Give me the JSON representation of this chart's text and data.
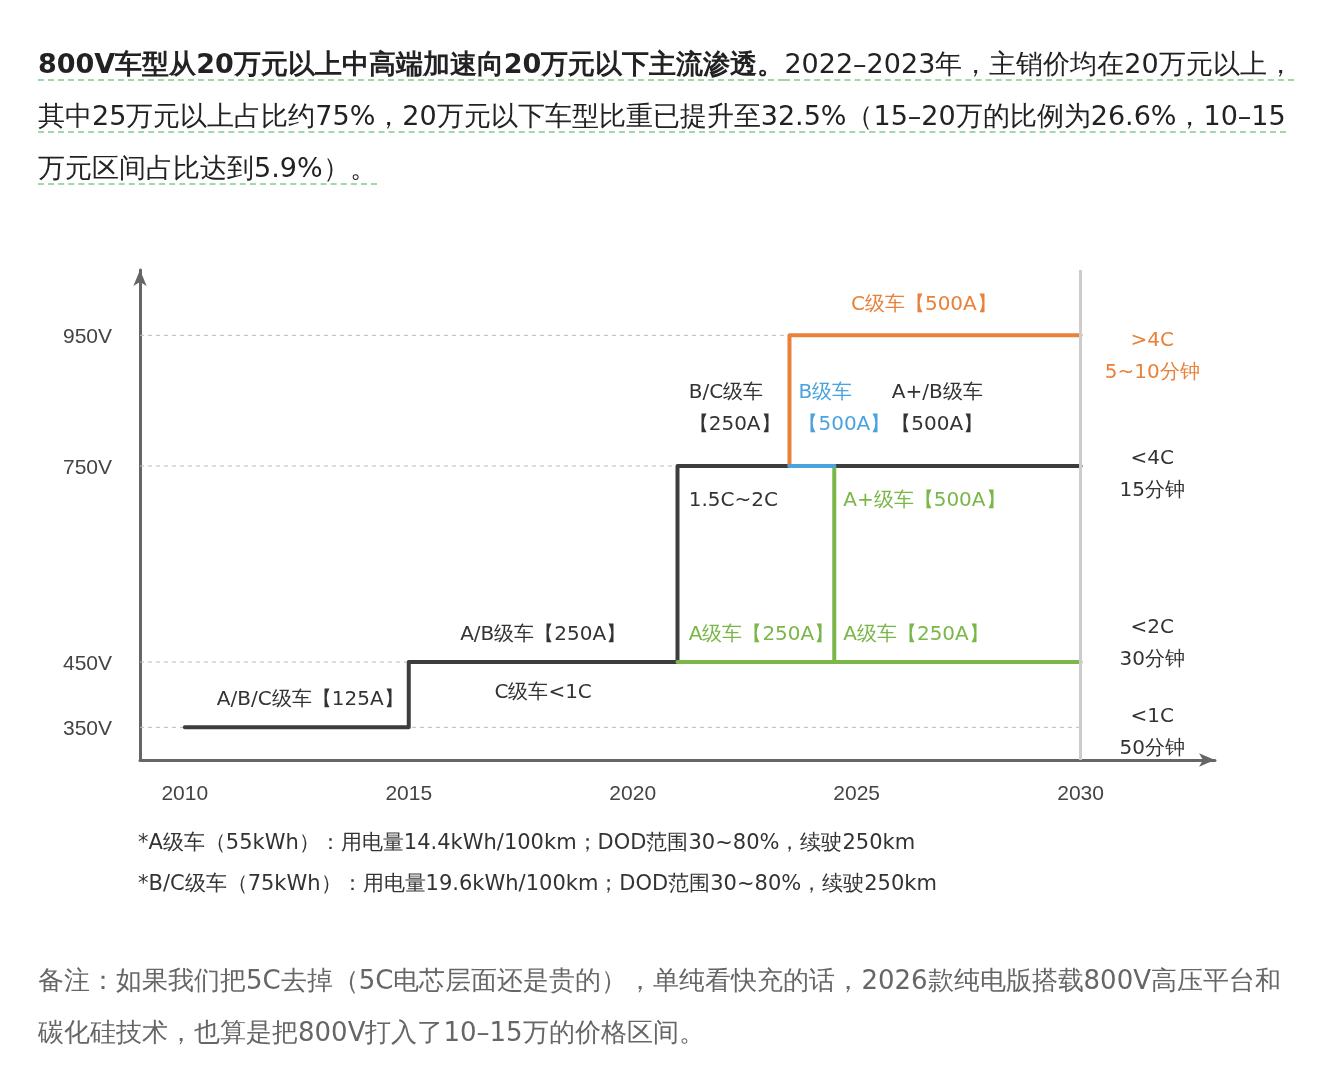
{
  "chart_data": {
    "type": "line",
    "title": "800V车型从20万元以上中高端加速向20万元以下主流渗透。",
    "subtitle": "2022–2023年，主销价均在20万元以上，其中25万元以上占比约75%，20万元以下车型比重已提升至32.5%（15–20万的比例为26.6%，10–15万元区间占比达到5.9%）。",
    "series": [
      {
        "color": "#3d3d3d",
        "x": [
          2010,
          2015,
          2015,
          2021,
          2021,
          2030
        ],
        "values": [
          350,
          350,
          450,
          450,
          750,
          750
        ]
      },
      {
        "color": "#7ab648",
        "x": [
          2021,
          2030
        ],
        "values": [
          450,
          450
        ]
      },
      {
        "color": "#7ab648",
        "x": [
          2024.5,
          2024.5
        ],
        "values": [
          450,
          750
        ]
      },
      {
        "color": "#e8813a",
        "x": [
          2023.5,
          2023.5,
          2030
        ],
        "values": [
          750,
          950,
          950
        ]
      },
      {
        "color": "#4aa3df",
        "x": [
          2023.5,
          2024.5
        ],
        "values": [
          750,
          750
        ]
      }
    ],
    "xlim": [
      2009,
      2033
    ],
    "xticks": [
      2010,
      2015,
      2020,
      2025,
      2030
    ],
    "ylim": [
      300,
      1050
    ],
    "yticks": [
      {
        "value": 350,
        "label": "350V"
      },
      {
        "value": 450,
        "label": "450V"
      },
      {
        "value": 750,
        "label": "750V"
      },
      {
        "value": 950,
        "label": "950V"
      }
    ],
    "grid": "y",
    "marker": "none",
    "line_style": "solid",
    "ref_lines": [
      {
        "axis": "x",
        "value": 2030,
        "color": "#cccccc"
      }
    ],
    "annotations": [
      "A/B/C级车【125A】",
      "A/B级车【250A】",
      "C级车<1C",
      "B/C级车【250A】",
      "1.5C~2C",
      "A级车【250A】",
      "B级车【500A】",
      "A+/B级车【500A】",
      "C级车【500A】",
      "A+级车【500A】",
      "A级车【250A】",
      ">4C5~10分钟",
      "<4C15分钟",
      "<2C30分钟",
      "<1C50分钟",
      "*A级车（55kWh）：用电量14.4kWh/100km；DOD范围30~80%，续驶250km",
      "*B/C级车（75kWh）：用电量19.6kWh/100km；DOD范围30~80%，续驶250km",
      "备注：如果我们把5C去掉（5C电芯层面还是贵的），单纯看快充的话，2026款纯电版搭载800V高压平台和碳化硅技术，也算是把800V打入了10–15万的价格区间。"
    ]
  }
}
